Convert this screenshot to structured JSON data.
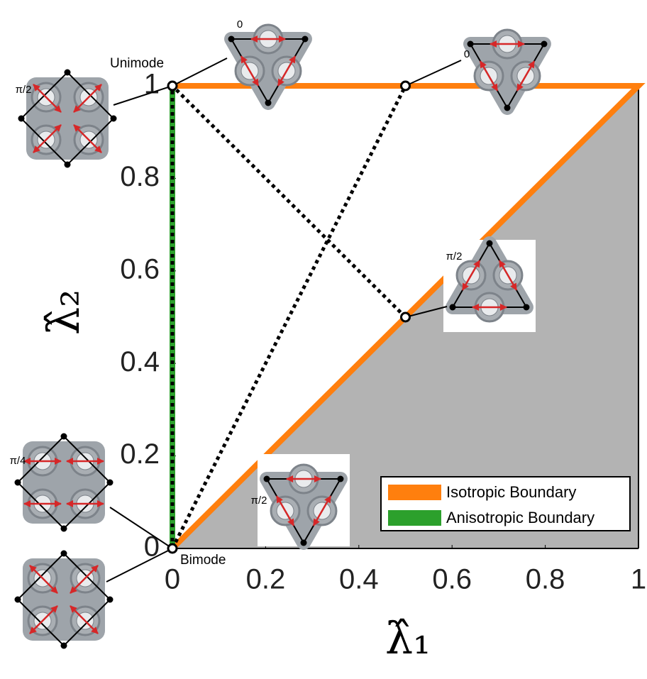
{
  "chart_data": {
    "type": "line",
    "xlabel": "λ̂₁",
    "ylabel": "λ̂₂",
    "xlim": [
      0,
      1
    ],
    "ylim": [
      0,
      1
    ],
    "xticks": [
      0,
      0.2,
      0.4,
      0.6,
      0.8,
      1
    ],
    "yticks": [
      0,
      0.2,
      0.4,
      0.6,
      0.8,
      1
    ],
    "series": [
      {
        "name": "Isotropic Boundary",
        "color": "#ff7f0e",
        "x": [
          0,
          1,
          0
        ],
        "values": [
          1,
          1,
          0
        ]
      },
      {
        "name": "Anisotropic Boundary",
        "color": "#2ca02c",
        "x": [
          0,
          0
        ],
        "values": [
          0,
          1
        ]
      }
    ],
    "dotted_lines": [
      {
        "color": "#000000",
        "x": [
          0,
          0,
          0.5
        ],
        "values": [
          0,
          1,
          0.5
        ]
      },
      {
        "color": "#000000",
        "x": [
          0,
          0.5
        ],
        "values": [
          0,
          1
        ]
      }
    ],
    "points": {
      "x": [
        0,
        0,
        0.5,
        0.5
      ],
      "values": [
        1,
        0,
        1,
        0.5
      ]
    },
    "shaded_region": {
      "color": "#b3b3b3",
      "x": [
        0,
        1,
        1
      ],
      "values": [
        0,
        1,
        0
      ]
    },
    "annotations": [
      "Unimode",
      "Bimode"
    ],
    "inset_labels": [
      "π/2",
      "0",
      "0",
      "π/2",
      "π/2",
      "π/4"
    ],
    "legend": "lower right"
  }
}
